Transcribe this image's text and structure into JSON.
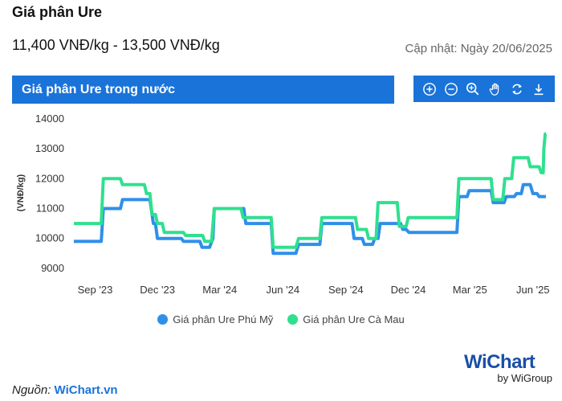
{
  "header": {
    "title": "Giá phân Ure",
    "price_range": "11,400 VNĐ/kg - 13,500 VNĐ/kg",
    "updated": "Cập nhật: Ngày 20/06/2025"
  },
  "chart_panel": {
    "title": "Giá phân Ure trong nước",
    "tools": [
      "zoom-in-icon",
      "zoom-out-icon",
      "magnify-icon",
      "pan-hand-icon",
      "reset-icon",
      "download-icon"
    ]
  },
  "colors": {
    "accent": "#1a73d9",
    "series1": "#2f8fea",
    "series2": "#2fe08f"
  },
  "chart_data": {
    "type": "line",
    "title": "Giá phân Ure trong nước",
    "ylabel": "(VNĐ/kg)",
    "ylim": [
      8700,
      14000
    ],
    "yticks": [
      "14000",
      "13000",
      "12000",
      "11000",
      "10000",
      "9000"
    ],
    "yticks_values": [
      14000,
      13000,
      12000,
      11000,
      10000,
      9000
    ],
    "xlim": [
      "2023-08-01",
      "2025-06-20"
    ],
    "xticks": [
      {
        "label": "Sep '23",
        "date": "2023-09-01"
      },
      {
        "label": "Dec '23",
        "date": "2023-12-01"
      },
      {
        "label": "Mar '24",
        "date": "2024-03-01"
      },
      {
        "label": "Jun '24",
        "date": "2024-06-01"
      },
      {
        "label": "Sep '24",
        "date": "2024-09-01"
      },
      {
        "label": "Dec '24",
        "date": "2024-12-01"
      },
      {
        "label": "Mar '25",
        "date": "2025-03-01"
      },
      {
        "label": "Jun '25",
        "date": "2025-06-01"
      }
    ],
    "series": [
      {
        "name": "Giá phân Ure Phú Mỹ",
        "color": "#2f8fea",
        "points": [
          [
            "2023-08-01",
            9900
          ],
          [
            "2023-09-10",
            9900
          ],
          [
            "2023-09-13",
            11000
          ],
          [
            "2023-10-08",
            11000
          ],
          [
            "2023-10-11",
            11300
          ],
          [
            "2023-11-20",
            11300
          ],
          [
            "2023-11-25",
            10500
          ],
          [
            "2023-11-28",
            10500
          ],
          [
            "2023-12-01",
            10000
          ],
          [
            "2024-01-05",
            10000
          ],
          [
            "2024-01-08",
            9900
          ],
          [
            "2024-02-01",
            9900
          ],
          [
            "2024-02-04",
            9700
          ],
          [
            "2024-02-15",
            9700
          ],
          [
            "2024-02-20",
            10000
          ],
          [
            "2024-02-22",
            11000
          ],
          [
            "2024-04-05",
            11000
          ],
          [
            "2024-04-08",
            10500
          ],
          [
            "2024-05-15",
            10500
          ],
          [
            "2024-05-18",
            9500
          ],
          [
            "2024-06-20",
            9500
          ],
          [
            "2024-06-24",
            9800
          ],
          [
            "2024-07-25",
            9800
          ],
          [
            "2024-07-28",
            10500
          ],
          [
            "2024-09-10",
            10500
          ],
          [
            "2024-09-13",
            10000
          ],
          [
            "2024-09-25",
            10000
          ],
          [
            "2024-09-28",
            9800
          ],
          [
            "2024-10-10",
            9800
          ],
          [
            "2024-10-13",
            10000
          ],
          [
            "2024-10-18",
            10000
          ],
          [
            "2024-10-21",
            10500
          ],
          [
            "2024-11-20",
            10500
          ],
          [
            "2024-11-23",
            10300
          ],
          [
            "2024-11-28",
            10300
          ],
          [
            "2024-12-02",
            10200
          ],
          [
            "2025-02-10",
            10200
          ],
          [
            "2025-02-13",
            11400
          ],
          [
            "2025-02-25",
            11400
          ],
          [
            "2025-02-28",
            11600
          ],
          [
            "2025-04-01",
            11600
          ],
          [
            "2025-04-04",
            11200
          ],
          [
            "2025-04-20",
            11200
          ],
          [
            "2025-04-23",
            11400
          ],
          [
            "2025-05-05",
            11400
          ],
          [
            "2025-05-08",
            11500
          ],
          [
            "2025-05-15",
            11500
          ],
          [
            "2025-05-18",
            11800
          ],
          [
            "2025-05-28",
            11800
          ],
          [
            "2025-06-01",
            11500
          ],
          [
            "2025-06-07",
            11500
          ],
          [
            "2025-06-10",
            11400
          ],
          [
            "2025-06-20",
            11400
          ]
        ]
      },
      {
        "name": "Giá phân Ure Cà Mau",
        "color": "#2fe08f",
        "points": [
          [
            "2023-08-01",
            10500
          ],
          [
            "2023-09-10",
            10500
          ],
          [
            "2023-09-13",
            12000
          ],
          [
            "2023-10-08",
            12000
          ],
          [
            "2023-10-11",
            11800
          ],
          [
            "2023-11-12",
            11800
          ],
          [
            "2023-11-15",
            11500
          ],
          [
            "2023-11-20",
            11500
          ],
          [
            "2023-11-23",
            10800
          ],
          [
            "2023-11-28",
            10800
          ],
          [
            "2023-12-01",
            10500
          ],
          [
            "2023-12-08",
            10500
          ],
          [
            "2023-12-11",
            10200
          ],
          [
            "2024-01-08",
            10200
          ],
          [
            "2024-01-11",
            10100
          ],
          [
            "2024-02-05",
            10100
          ],
          [
            "2024-02-08",
            9900
          ],
          [
            "2024-02-18",
            9900
          ],
          [
            "2024-02-22",
            11000
          ],
          [
            "2024-04-01",
            11000
          ],
          [
            "2024-04-04",
            10700
          ],
          [
            "2024-05-15",
            10700
          ],
          [
            "2024-05-18",
            9700
          ],
          [
            "2024-06-20",
            9700
          ],
          [
            "2024-06-24",
            10000
          ],
          [
            "2024-07-25",
            10000
          ],
          [
            "2024-07-28",
            10700
          ],
          [
            "2024-09-15",
            10700
          ],
          [
            "2024-09-18",
            10300
          ],
          [
            "2024-10-01",
            10300
          ],
          [
            "2024-10-04",
            10000
          ],
          [
            "2024-10-15",
            10000
          ],
          [
            "2024-10-18",
            11200
          ],
          [
            "2024-11-15",
            11200
          ],
          [
            "2024-11-18",
            10400
          ],
          [
            "2024-11-28",
            10400
          ],
          [
            "2024-12-01",
            10700
          ],
          [
            "2025-02-10",
            10700
          ],
          [
            "2025-02-13",
            12000
          ],
          [
            "2025-04-01",
            12000
          ],
          [
            "2025-04-04",
            11300
          ],
          [
            "2025-04-18",
            11300
          ],
          [
            "2025-04-21",
            12000
          ],
          [
            "2025-05-01",
            12000
          ],
          [
            "2025-05-04",
            12700
          ],
          [
            "2025-05-25",
            12700
          ],
          [
            "2025-05-28",
            12400
          ],
          [
            "2025-06-10",
            12400
          ],
          [
            "2025-06-13",
            12200
          ],
          [
            "2025-06-16",
            12200
          ],
          [
            "2025-06-17",
            13000
          ],
          [
            "2025-06-19",
            13500
          ],
          [
            "2025-06-20",
            13500
          ]
        ]
      }
    ],
    "legend_position": "bottom-center",
    "grid": false
  },
  "footer": {
    "source_label": "Nguồn:",
    "source_link": "WiChart.vn",
    "logo_main": "WiChart",
    "logo_sub": "by WiGroup"
  }
}
